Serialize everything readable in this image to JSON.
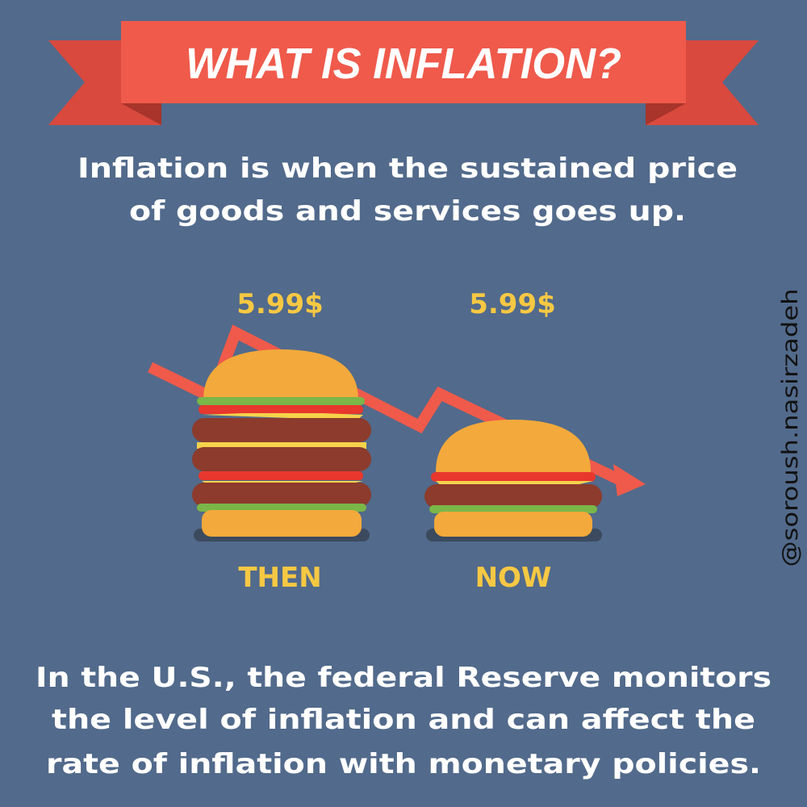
{
  "banner": {
    "title": "WHAT IS INFLATION?"
  },
  "definition": [
    "Inflation is when the sustained price",
    "of goods and services goes up."
  ],
  "comparison": [
    {
      "price": "5.99$",
      "label": "THEN"
    },
    {
      "price": "5.99$",
      "label": "NOW"
    }
  ],
  "footer": [
    "In the U.S., the federal Reserve monitors",
    "the level of inflation and can affect the",
    "rate of inflation with monetary policies."
  ],
  "credit": "@soroush.nasirzadeh"
}
